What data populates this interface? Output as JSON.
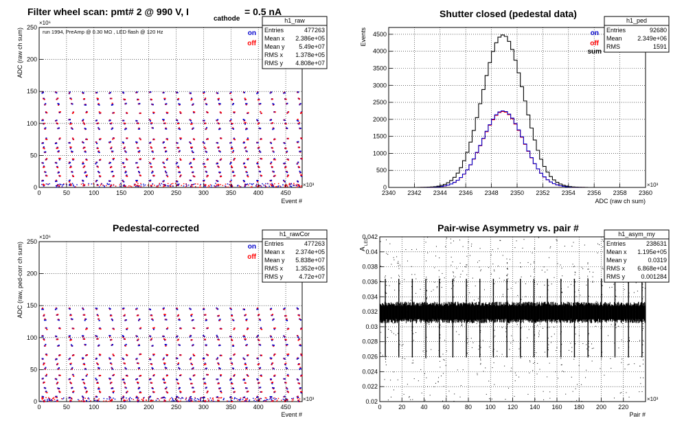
{
  "chart_data": [
    {
      "id": "raw",
      "type": "scatter",
      "title": "Filter wheel scan: pmt#   2 @   990 V, I",
      "title_sub": "cathode",
      "title_tail": "= 0.5 nA",
      "annotation": "run 1994, PreAmp @ 0.30 MΩ , LED flash @  120 Hz",
      "xlabel": "Event #",
      "ylabel": "ADC (raw ch sum)",
      "x_exponent": "×10³",
      "y_exponent": "×10⁶",
      "xlim": [
        0,
        480
      ],
      "ylim": [
        0,
        250
      ],
      "xticks": [
        "0",
        "50",
        "100",
        "150",
        "200",
        "250",
        "300",
        "350",
        "400",
        "450"
      ],
      "yticks": [
        "0",
        "50",
        "100",
        "150",
        "200",
        "250"
      ],
      "grid": true,
      "legend": [
        {
          "label": "on",
          "color": "#0000cc"
        },
        {
          "label": "off",
          "color": "#ff0000"
        }
      ],
      "stats": {
        "name": "h1_raw",
        "rows": [
          [
            "Entries",
            "477263"
          ],
          [
            "Mean x",
            "2.386e+05"
          ],
          [
            "Mean y",
            "5.49e+07"
          ],
          [
            "RMS x",
            "1.378e+05"
          ],
          [
            "RMS y",
            "4.808e+07"
          ]
        ]
      },
      "levels": [
        148,
        138,
        130,
        117,
        105,
        100,
        92,
        76,
        70,
        62,
        56,
        44,
        38,
        32,
        24,
        18,
        10,
        3
      ],
      "period": 24.5
    },
    {
      "id": "ped",
      "type": "line",
      "title": "Shutter closed (pedestal data)",
      "xlabel": "ADC (raw ch sum)",
      "ylabel": "Events",
      "x_exponent": "×10³",
      "xlim": [
        2340,
        2360
      ],
      "ylim": [
        0,
        4700
      ],
      "xticks": [
        "2340",
        "2342",
        "2344",
        "2346",
        "2348",
        "2350",
        "2352",
        "2354",
        "2356",
        "2358",
        "2360"
      ],
      "yticks": [
        "0",
        "500",
        "1000",
        "1500",
        "2000",
        "2500",
        "3000",
        "3500",
        "4000",
        "4500"
      ],
      "grid": true,
      "legend": [
        {
          "label": "on",
          "color": "#0000cc"
        },
        {
          "label": "off",
          "color": "#ff0000"
        },
        {
          "label": "sum",
          "color": "#000000"
        }
      ],
      "stats": {
        "name": "h1_ped",
        "rows": [
          [
            "Entries",
            "92680"
          ],
          [
            "Mean",
            "2.349e+06"
          ],
          [
            "RMS",
            "1591"
          ]
        ]
      },
      "series": [
        {
          "name": "sum",
          "color": "#000000",
          "peak": 4480,
          "mean": 2348.9,
          "sigma": 1.62
        },
        {
          "name": "on",
          "color": "#0000cc",
          "peak": 2250,
          "mean": 2348.9,
          "sigma": 1.62
        },
        {
          "name": "off",
          "color": "#ff0000",
          "peak": 2230,
          "mean": 2348.9,
          "sigma": 1.62
        }
      ]
    },
    {
      "id": "rawCor",
      "type": "scatter",
      "title": "Pedestal-corrected",
      "xlabel": "Event #",
      "ylabel": "ADC (raw, ped-corr ch sum)",
      "x_exponent": "×10³",
      "y_exponent": "×10⁶",
      "xlim": [
        0,
        480
      ],
      "ylim": [
        0,
        250
      ],
      "xticks": [
        "0",
        "50",
        "100",
        "150",
        "200",
        "250",
        "300",
        "350",
        "400",
        "450"
      ],
      "yticks": [
        "0",
        "50",
        "100",
        "150",
        "200",
        "250"
      ],
      "grid": true,
      "legend": [
        {
          "label": "on",
          "color": "#0000cc"
        },
        {
          "label": "off",
          "color": "#ff0000"
        }
      ],
      "stats": {
        "name": "h1_rawCor",
        "rows": [
          [
            "Entries",
            "477263"
          ],
          [
            "Mean x",
            "2.374e+05"
          ],
          [
            "Mean y",
            "5.838e+07"
          ],
          [
            "RMS x",
            "1.352e+05"
          ],
          [
            "RMS y",
            "4.72e+07"
          ]
        ]
      },
      "levels": [
        145,
        135,
        128,
        114,
        102,
        97,
        88,
        73,
        67,
        59,
        52,
        41,
        35,
        29,
        21,
        15,
        7,
        1
      ],
      "period": 24.5
    },
    {
      "id": "asym",
      "type": "scatter",
      "title": "Pair-wise Asymmetry vs. pair #",
      "xlabel": "Pair #",
      "ylabel": "A",
      "ylabel_sub": "LED",
      "x_exponent": "×10³",
      "xlim": [
        0,
        240
      ],
      "ylim": [
        0.02,
        0.042
      ],
      "xticks": [
        "0",
        "20",
        "40",
        "60",
        "80",
        "100",
        "120",
        "140",
        "160",
        "180",
        "200",
        "220"
      ],
      "yticks": [
        "0.02",
        "0.022",
        "0.024",
        "0.026",
        "0.028",
        "0.03",
        "0.032",
        "0.034",
        "0.036",
        "0.038",
        "0.04",
        "0.042"
      ],
      "grid": true,
      "stats": {
        "name": "h1_asym_my",
        "rows": [
          [
            "Entries",
            "238631"
          ],
          [
            "Mean x",
            "1.195e+05"
          ],
          [
            "Mean y",
            "0.0319"
          ],
          [
            "RMS x",
            "6.868e+04"
          ],
          [
            "RMS y",
            "0.001284"
          ]
        ]
      },
      "band_center": 0.0319,
      "band_halfwidth": 0.0012,
      "period": 12.2
    }
  ]
}
